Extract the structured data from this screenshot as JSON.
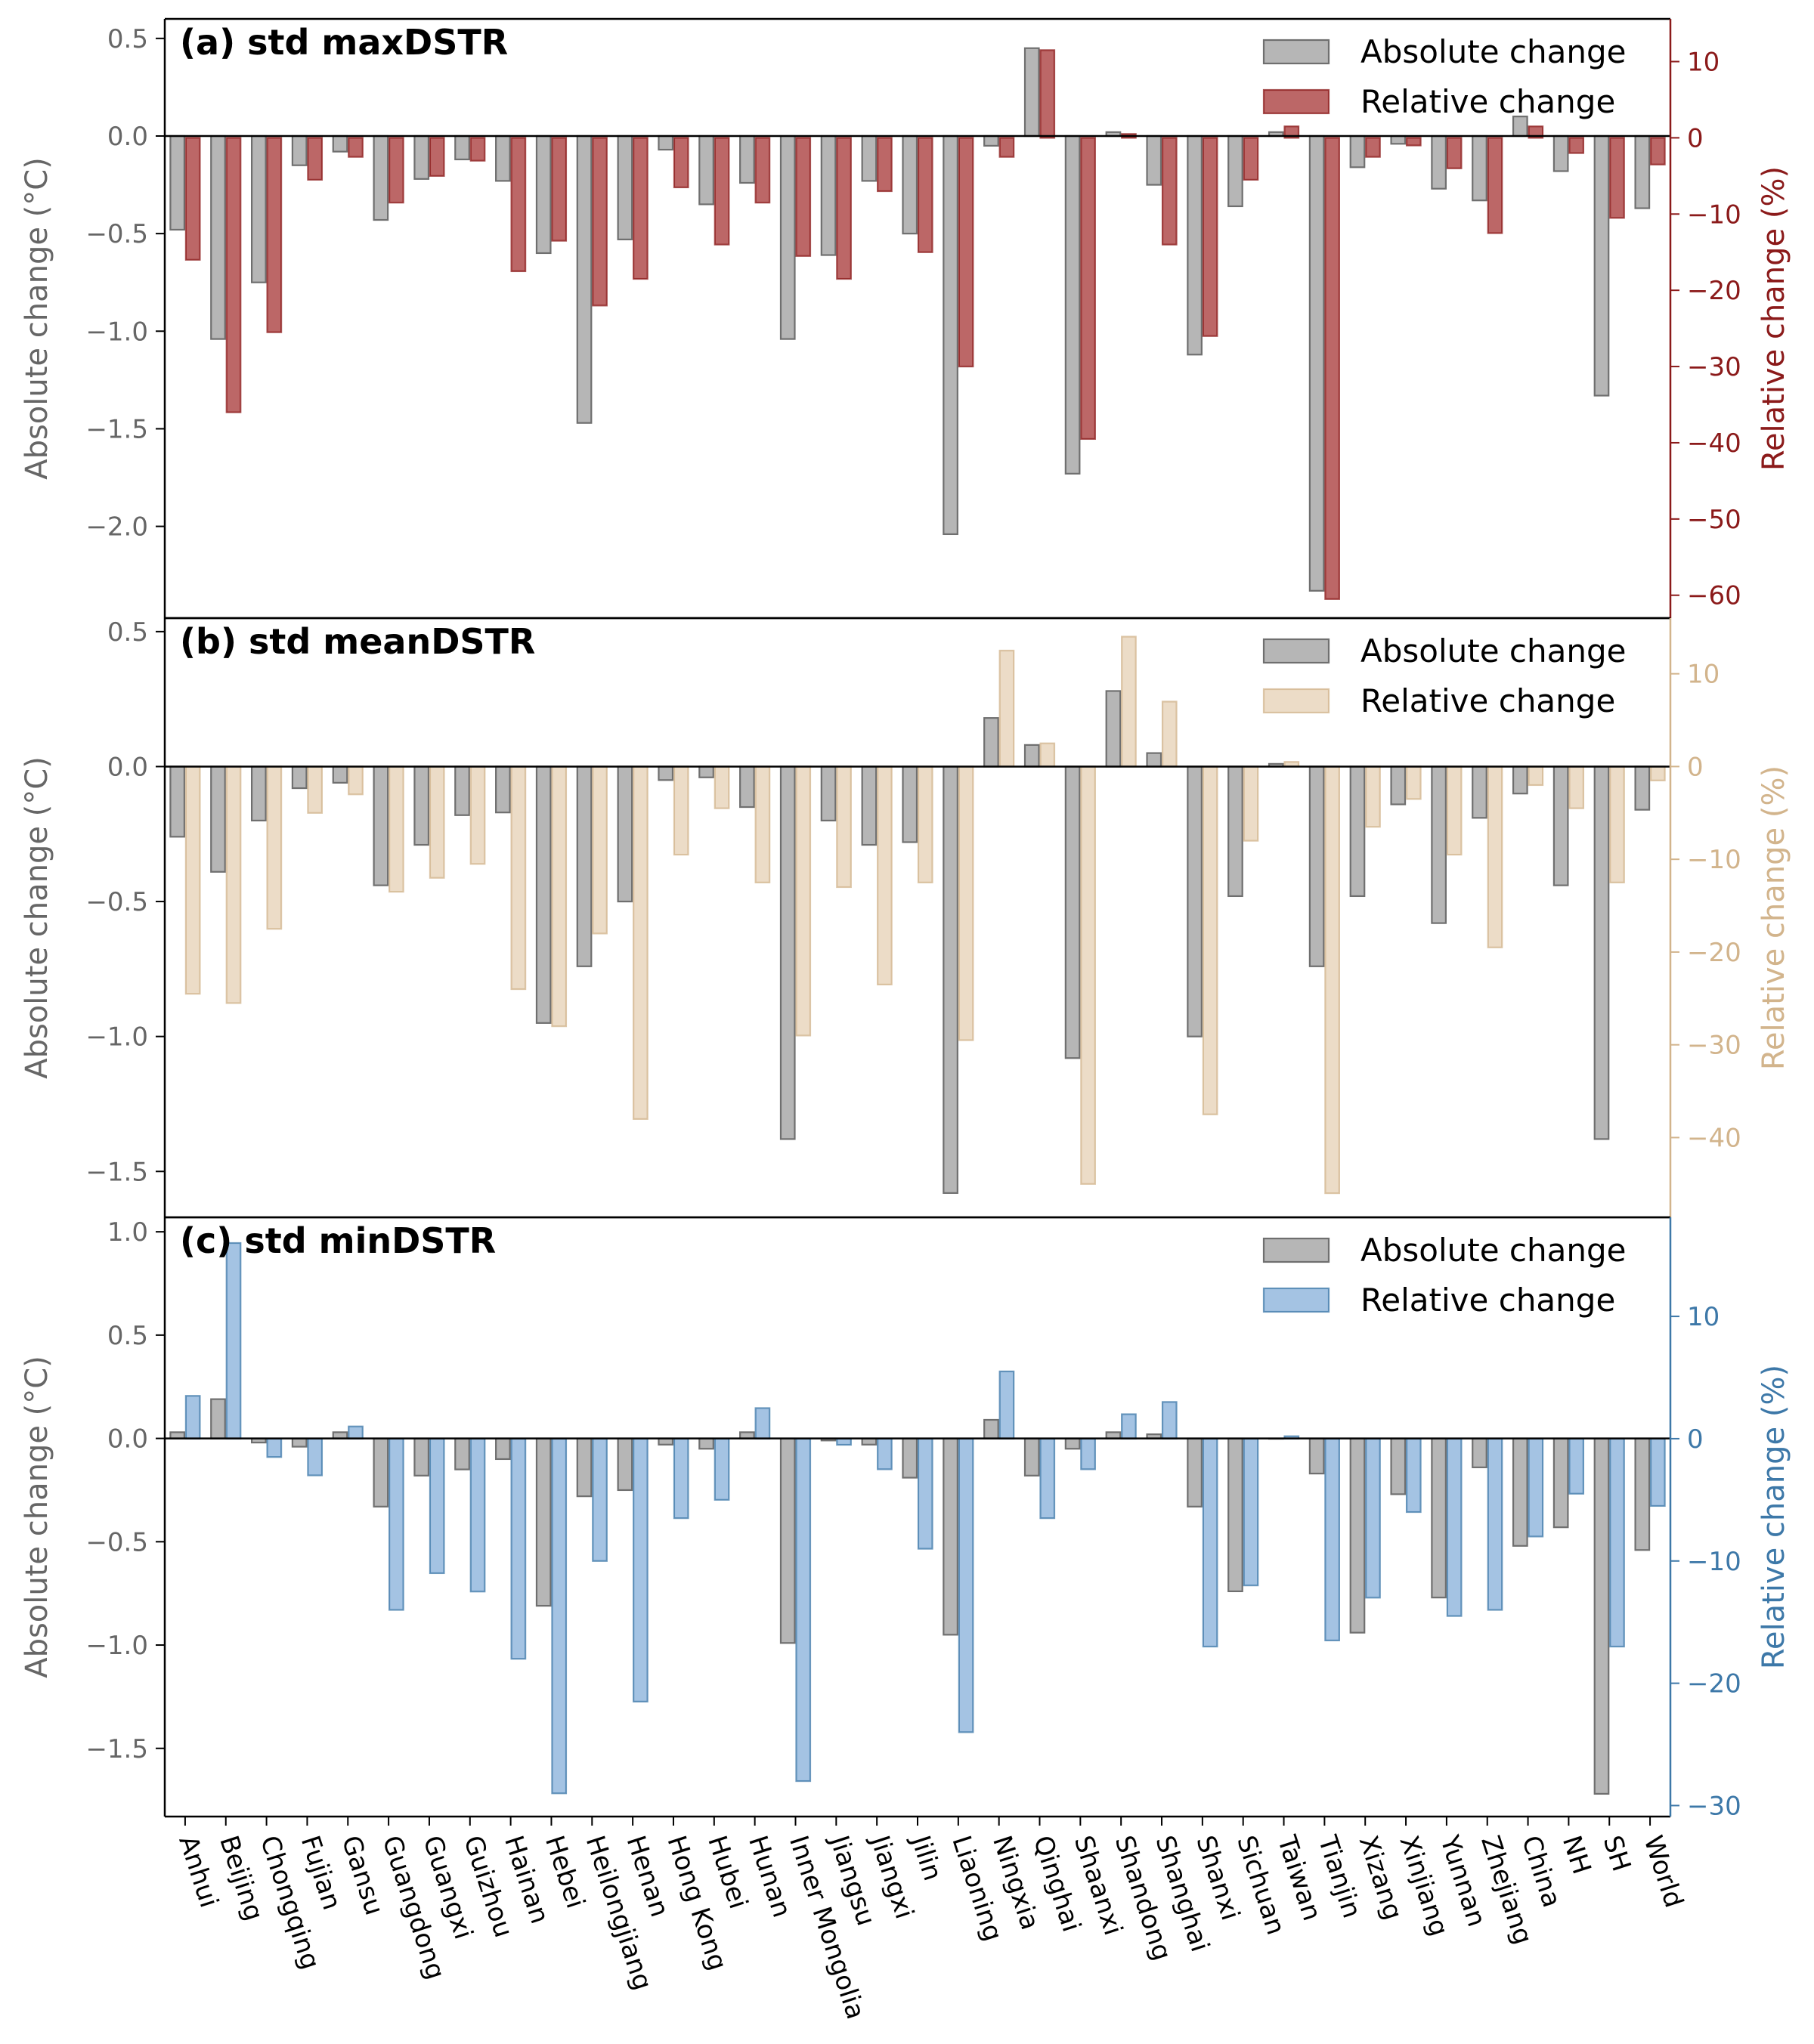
{
  "figure": {
    "categories": [
      "Anhui",
      "Beijing",
      "Chongqing",
      "Fujian",
      "Gansu",
      "Guangdong",
      "Guangxi",
      "Guizhou",
      "Hainan",
      "Hebei",
      "Heilongjiang",
      "Henan",
      "Hong Kong",
      "Hubei",
      "Hunan",
      "Inner Mongolia",
      "Jiangsu",
      "Jiangxi",
      "Jilin",
      "Liaoning",
      "Ningxia",
      "Qinghai",
      "Shaanxi",
      "Shandong",
      "Shanghai",
      "Shanxi",
      "Sichuan",
      "Taiwan",
      "Tianjin",
      "Xizang",
      "Xinjiang",
      "Yunnan",
      "Zhejiang",
      "China",
      "NH",
      "SH",
      "World"
    ]
  },
  "colors": {
    "absolute": "#a9a9a9",
    "absolute_edge": "#6f6f6f",
    "axis": "#000000",
    "tick_text": "#666666",
    "zero_line": "#000000"
  },
  "chart_data": [
    {
      "type": "bar",
      "title": "(a) std maxDSTR",
      "ylabel_left": "Absolute change (°C)",
      "ylabel_right": "Relative change (%)",
      "right_color": "#8b1a1a",
      "right_fill": "#b55656",
      "ylim_left": [
        -2.47,
        0.6
      ],
      "ylim_right": [
        -63.0,
        15.6
      ],
      "yticks_left": [
        0.5,
        0.0,
        -0.5,
        -1.0,
        -1.5,
        -2.0
      ],
      "yticks_right": [
        10,
        0,
        -10,
        -20,
        -30,
        -40,
        -50,
        -60
      ],
      "legend": {
        "absolute": "Absolute change",
        "relative": "Relative change",
        "position": "upper right"
      },
      "series": [
        {
          "name": "Absolute change",
          "values": [
            -0.48,
            -1.04,
            -0.75,
            -0.15,
            -0.08,
            -0.43,
            -0.22,
            -0.12,
            -0.23,
            -0.6,
            -1.47,
            -0.53,
            -0.07,
            -0.35,
            -0.24,
            -1.04,
            -0.61,
            -0.23,
            -0.5,
            -2.04,
            -0.05,
            0.45,
            -1.73,
            0.02,
            -0.25,
            -1.12,
            -0.36,
            0.02,
            -2.33,
            -0.16,
            -0.04,
            -0.27,
            -0.33,
            0.1,
            -0.18,
            -1.33,
            -0.37
          ]
        },
        {
          "name": "Relative change",
          "values": [
            -16.0,
            -36.0,
            -25.5,
            -5.5,
            -2.5,
            -8.5,
            -5.0,
            -3.0,
            -17.5,
            -13.5,
            -22.0,
            -18.5,
            -6.5,
            -14.0,
            -8.5,
            -15.5,
            -18.5,
            -7.0,
            -15.0,
            -30.0,
            -2.5,
            11.5,
            -39.5,
            0.5,
            -14.0,
            -26.0,
            -5.5,
            1.5,
            -60.5,
            -2.5,
            -1.0,
            -4.0,
            -12.5,
            1.5,
            -2.0,
            -10.5,
            -3.5
          ]
        }
      ]
    },
    {
      "type": "bar",
      "title": "(b) std meanDSTR",
      "ylabel_left": "Absolute change (°C)",
      "ylabel_right": "Relative change (%)",
      "right_color": "#d2b48c",
      "right_fill": "#ead8c1",
      "ylim_left": [
        -1.67,
        0.55
      ],
      "ylim_right": [
        -48.6,
        16.0
      ],
      "yticks_left": [
        0.5,
        0.0,
        -0.5,
        -1.0,
        -1.5
      ],
      "yticks_right": [
        10,
        0,
        -10,
        -20,
        -30,
        -40
      ],
      "legend": {
        "absolute": "Absolute change",
        "relative": "Relative change",
        "position": "upper right"
      },
      "series": [
        {
          "name": "Absolute change",
          "values": [
            -0.26,
            -0.39,
            -0.2,
            -0.08,
            -0.06,
            -0.44,
            -0.29,
            -0.18,
            -0.17,
            -0.95,
            -0.74,
            -0.5,
            -0.05,
            -0.04,
            -0.15,
            -1.38,
            -0.2,
            -0.29,
            -0.28,
            -1.58,
            0.18,
            0.08,
            -1.08,
            0.28,
            0.05,
            -1.0,
            -0.48,
            0.01,
            -0.74,
            -0.48,
            -0.14,
            -0.58,
            -0.19,
            -0.1,
            -0.44,
            -1.38,
            -0.16
          ]
        },
        {
          "name": "Relative change",
          "values": [
            -24.5,
            -25.5,
            -17.5,
            -5.0,
            -3.0,
            -13.5,
            -12.0,
            -10.5,
            -24.0,
            -28.0,
            -18.0,
            -38.0,
            -9.5,
            -4.5,
            -12.5,
            -29.0,
            -13.0,
            -23.5,
            -12.5,
            -29.5,
            12.5,
            2.5,
            -45.0,
            14.0,
            7.0,
            -37.5,
            -8.0,
            0.5,
            -46.0,
            -6.5,
            -3.5,
            -9.5,
            -19.5,
            -2.0,
            -4.5,
            -12.5,
            -1.5
          ]
        }
      ]
    },
    {
      "type": "bar",
      "title": "(c) std minDSTR",
      "ylabel_left": "Absolute change (°C)",
      "ylabel_right": "Relative change (%)",
      "right_color": "#3d78a8",
      "right_fill": "#9abde0",
      "ylim_left": [
        -1.83,
        1.07
      ],
      "ylim_right": [
        -30.9,
        18.1
      ],
      "yticks_left": [
        1.0,
        0.5,
        0.0,
        -0.5,
        -1.0,
        -1.5
      ],
      "yticks_right": [
        10,
        0,
        -10,
        -20,
        -30
      ],
      "legend": {
        "absolute": "Absolute change",
        "relative": "Relative change",
        "position": "upper right"
      },
      "series": [
        {
          "name": "Absolute change",
          "values": [
            0.03,
            0.19,
            -0.02,
            -0.04,
            0.03,
            -0.33,
            -0.18,
            -0.15,
            -0.1,
            -0.81,
            -0.28,
            -0.25,
            -0.03,
            -0.05,
            0.03,
            -0.99,
            -0.01,
            -0.03,
            -0.19,
            -0.95,
            0.09,
            -0.18,
            -0.05,
            0.03,
            0.02,
            -0.33,
            -0.74,
            0.0,
            -0.17,
            -0.94,
            -0.27,
            -0.77,
            -0.14,
            -0.52,
            -0.43,
            -1.72,
            -0.54
          ]
        },
        {
          "name": "Relative change",
          "values": [
            3.5,
            16.0,
            -1.5,
            -3.0,
            1.0,
            -14.0,
            -11.0,
            -12.5,
            -18.0,
            -29.0,
            -10.0,
            -21.5,
            -6.5,
            -5.0,
            2.5,
            -28.0,
            -0.5,
            -2.5,
            -9.0,
            -24.0,
            5.5,
            -6.5,
            -2.5,
            2.0,
            3.0,
            -17.0,
            -12.0,
            0.2,
            -16.5,
            -13.0,
            -6.0,
            -14.5,
            -14.0,
            -8.0,
            -4.5,
            -17.0,
            -5.5
          ]
        }
      ]
    }
  ]
}
